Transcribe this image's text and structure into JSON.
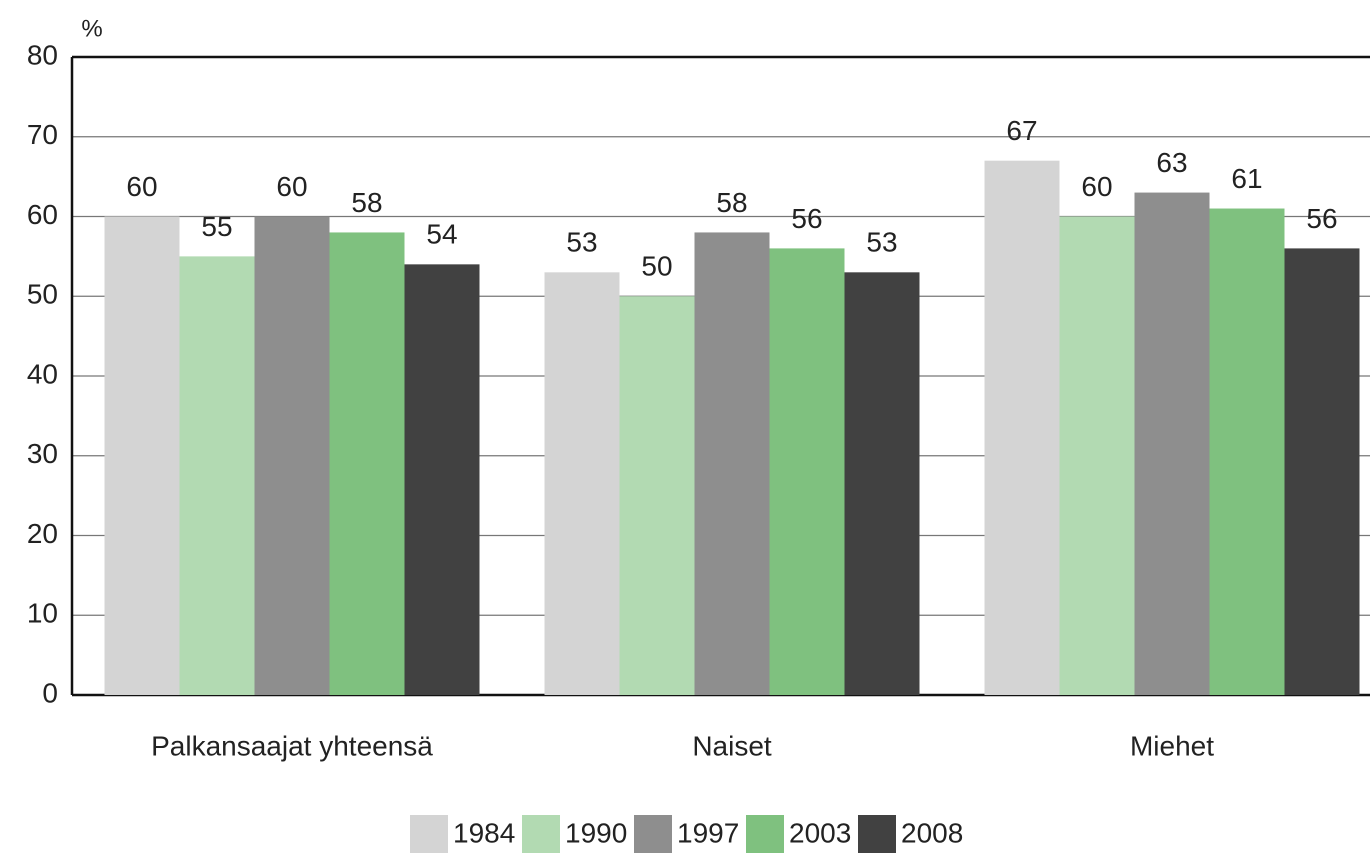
{
  "chart_data": {
    "type": "bar",
    "y_axis_label": "%",
    "categories": [
      "Palkansaajat yhteensä",
      "Naiset",
      "Miehet"
    ],
    "series": [
      {
        "name": "1984",
        "color": "#d4d4d4",
        "values": [
          60,
          53,
          67
        ]
      },
      {
        "name": "1990",
        "color": "#b2dab2",
        "values": [
          55,
          50,
          60
        ]
      },
      {
        "name": "1997",
        "color": "#8e8e8e",
        "values": [
          60,
          58,
          63
        ]
      },
      {
        "name": "2003",
        "color": "#7fc17f",
        "values": [
          58,
          56,
          61
        ]
      },
      {
        "name": "2008",
        "color": "#414141",
        "values": [
          54,
          53,
          56
        ]
      }
    ],
    "ylim": [
      0,
      80
    ],
    "yticks": [
      0,
      10,
      20,
      30,
      40,
      50,
      60,
      70,
      80
    ],
    "grid": true,
    "legend": "bottom"
  }
}
